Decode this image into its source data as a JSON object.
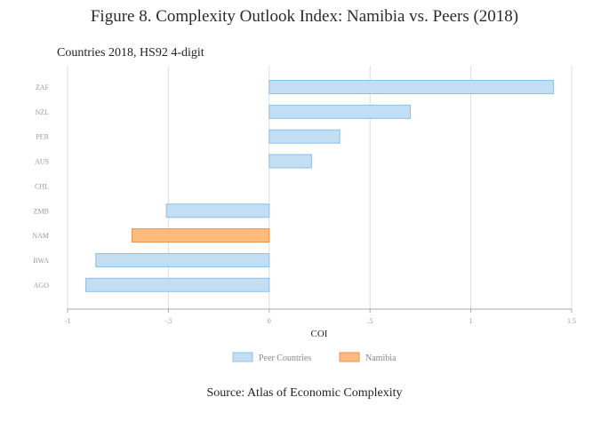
{
  "figure_title": "Figure 8. Complexity Outlook Index: Namibia vs. Peers (2018)",
  "source": "Source: Atlas of Economic Complexity",
  "colors": {
    "peer_fill": "#c3ddf3",
    "peer_stroke": "#8cc1e8",
    "namibia_fill": "#fdbb7f",
    "namibia_stroke": "#e8904a",
    "grid": "#dddddd"
  },
  "chart_data": {
    "type": "bar",
    "orientation": "horizontal",
    "title": "Countries 2018, HS92 4-digit",
    "xlabel": "COI",
    "ylabel": "",
    "xlim": [
      -1,
      1.5
    ],
    "xticks": [
      -1,
      -0.5,
      0,
      0.5,
      1,
      1.5
    ],
    "xtick_labels": [
      "-1",
      "-.5",
      "0",
      ".5",
      "1",
      "1.5"
    ],
    "grid": true,
    "legend_position": "bottom",
    "categories": [
      "ZAF",
      "NZL",
      "PER",
      "AUS",
      "CHL",
      "ZMB",
      "NAM",
      "BWA",
      "AGO"
    ],
    "series": [
      {
        "name": "Peer Countries",
        "values": [
          1.41,
          0.7,
          0.35,
          0.21,
          null,
          -0.51,
          null,
          -0.86,
          -0.91
        ]
      },
      {
        "name": "Namibia",
        "values": [
          null,
          null,
          null,
          null,
          null,
          null,
          -0.68,
          null,
          null
        ]
      }
    ]
  }
}
